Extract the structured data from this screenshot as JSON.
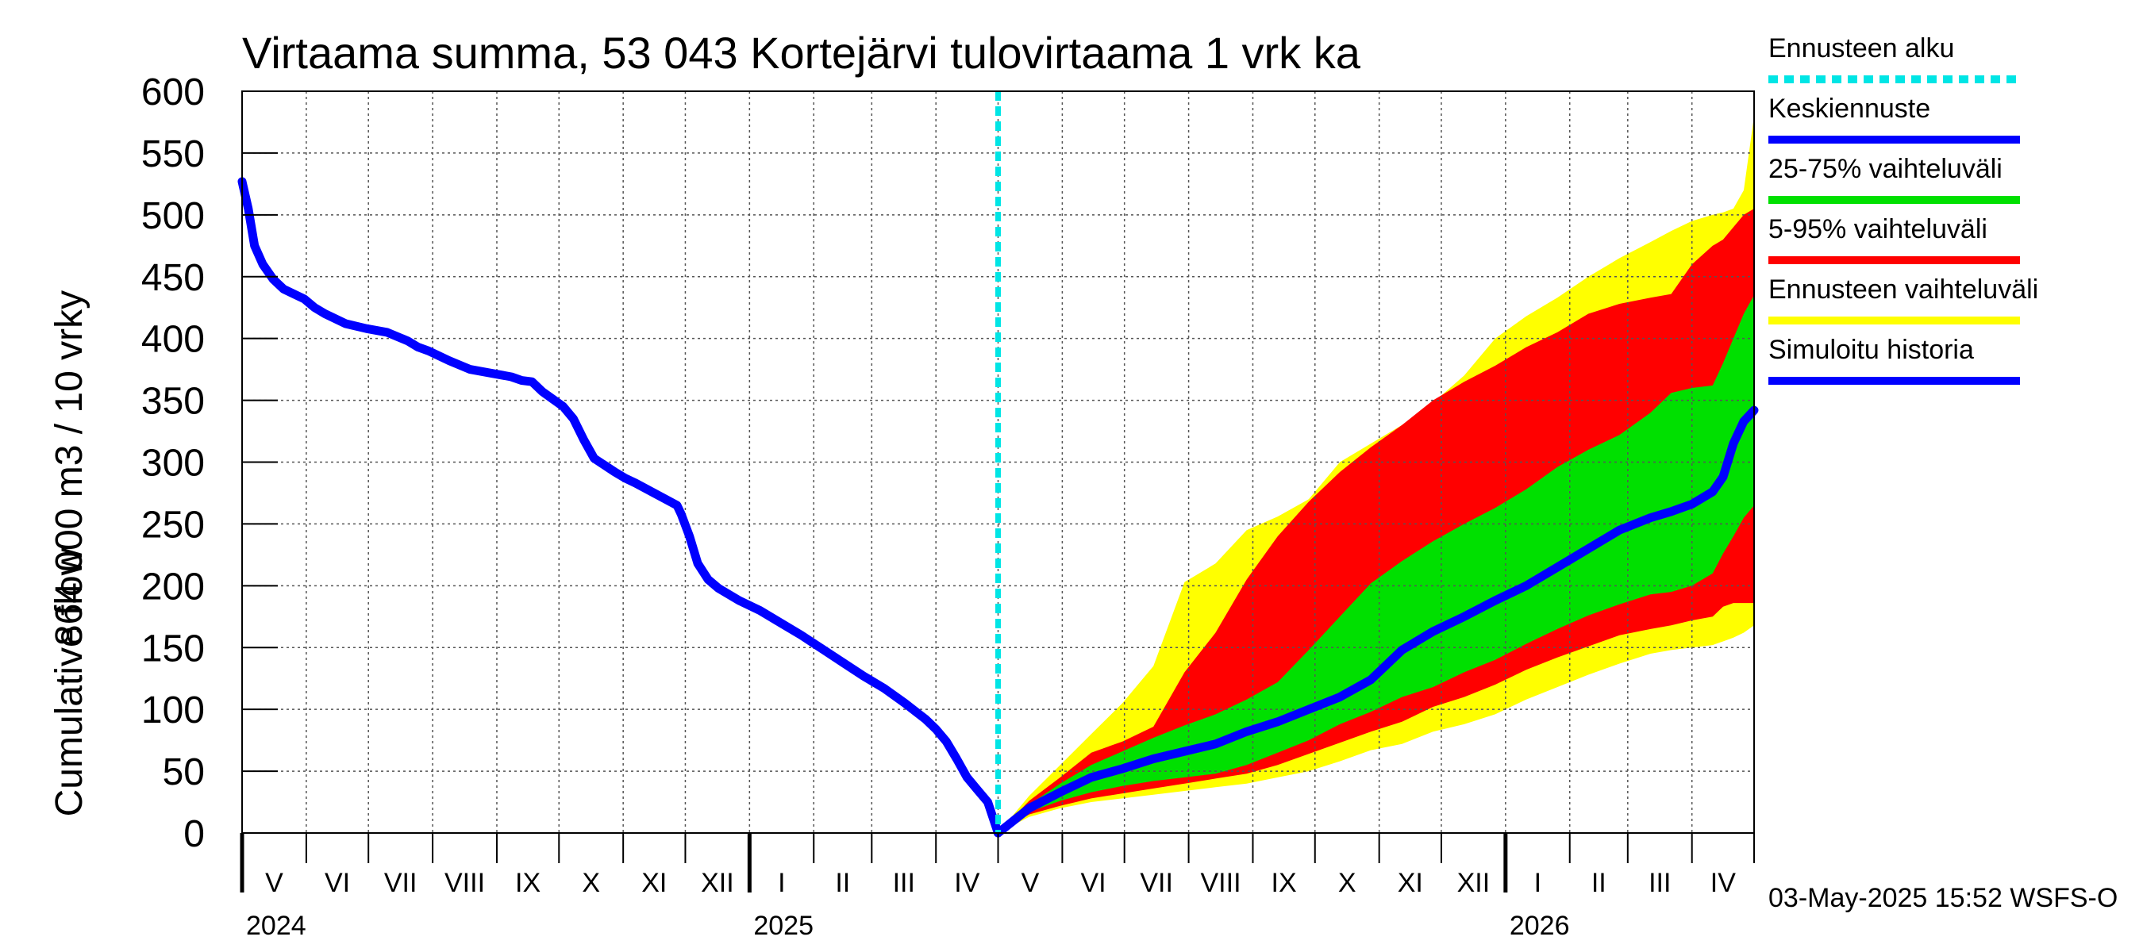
{
  "chart_data": {
    "type": "area",
    "title": "Virtaama summa, 53 043 Kortejärvi tulovirtaama 1 vrk ka",
    "ylabel_line1": "864 000 m3 / 10 vrky",
    "ylabel_line2": "Cumulative flow",
    "ylim": [
      0,
      600
    ],
    "yticks": [
      0,
      50,
      100,
      150,
      200,
      250,
      300,
      350,
      400,
      450,
      500,
      550,
      600
    ],
    "x_range_days": [
      0,
      730
    ],
    "month_labels": [
      "V",
      "VI",
      "VII",
      "VIII",
      "IX",
      "X",
      "XI",
      "XII",
      "I",
      "II",
      "III",
      "IV",
      "V",
      "VI",
      "VII",
      "VIII",
      "IX",
      "X",
      "XI",
      "XII",
      "I",
      "II",
      "III",
      "IV"
    ],
    "month_starts_days": [
      0,
      31,
      61,
      92,
      123,
      153,
      184,
      214,
      245,
      276,
      304,
      335,
      365,
      396,
      426,
      457,
      488,
      518,
      549,
      579,
      610,
      641,
      669,
      700,
      730
    ],
    "year_labels": [
      {
        "label": "2024",
        "day": 0
      },
      {
        "label": "2025",
        "day": 245
      },
      {
        "label": "2026",
        "day": 610
      }
    ],
    "forecast_start_day": 365,
    "timestamp": "03-May-2025 15:52 WSFS-O",
    "legend": [
      {
        "label": "Ennusteen alku",
        "color": "#00e5e5",
        "dashed": true
      },
      {
        "label": "Keskiennuste",
        "color": "#0000ff",
        "dashed": false
      },
      {
        "label": "25-75% vaihteluväli",
        "color": "#00e000",
        "dashed": false
      },
      {
        "label": "5-95% vaihteluväli",
        "color": "#ff0000",
        "dashed": false
      },
      {
        "label": "Ennusteen vaihteluväli",
        "color": "#ffff00",
        "dashed": false
      },
      {
        "label": "Simuloitu historia",
        "color": "#0000ff",
        "dashed": false
      }
    ],
    "series": [
      {
        "name": "Simuloitu historia",
        "x": [
          0,
          3,
          6,
          10,
          15,
          20,
          25,
          30,
          35,
          40,
          50,
          60,
          70,
          80,
          85,
          90,
          100,
          110,
          120,
          130,
          135,
          140,
          145,
          150,
          155,
          160,
          165,
          170,
          180,
          185,
          190,
          200,
          210,
          212,
          216,
          220,
          225,
          230,
          240,
          250,
          260,
          270,
          280,
          290,
          300,
          310,
          320,
          330,
          335,
          340,
          345,
          350,
          355,
          360,
          365
        ],
        "values": [
          527,
          505,
          475,
          460,
          448,
          440,
          436,
          432,
          425,
          420,
          412,
          408,
          405,
          398,
          393,
          390,
          382,
          375,
          372,
          369,
          366,
          365,
          357,
          351,
          345,
          335,
          318,
          303,
          292,
          287,
          283,
          274,
          265,
          258,
          240,
          218,
          205,
          198,
          188,
          180,
          170,
          160,
          149,
          138,
          127,
          117,
          105,
          92,
          84,
          74,
          60,
          45,
          35,
          25,
          0
        ]
      },
      {
        "name": "Keskiennuste",
        "x": [
          365,
          380,
          395,
          410,
          425,
          440,
          455,
          470,
          485,
          500,
          515,
          530,
          545,
          560,
          575,
          590,
          605,
          620,
          635,
          650,
          665,
          680,
          690,
          700,
          710,
          715,
          720,
          725,
          730
        ],
        "values": [
          0,
          20,
          33,
          45,
          52,
          60,
          66,
          72,
          82,
          90,
          100,
          110,
          124,
          148,
          163,
          175,
          188,
          200,
          215,
          230,
          245,
          255,
          260,
          266,
          276,
          288,
          315,
          333,
          342
        ]
      },
      {
        "name": "25-75% vaihteluväli",
        "x": [
          365,
          380,
          395,
          410,
          425,
          440,
          455,
          470,
          485,
          500,
          515,
          530,
          545,
          560,
          575,
          590,
          605,
          620,
          635,
          650,
          665,
          680,
          690,
          700,
          710,
          715,
          720,
          725,
          730
        ],
        "upper": [
          0,
          23,
          40,
          55,
          66,
          77,
          87,
          96,
          108,
          122,
          148,
          175,
          202,
          220,
          236,
          250,
          263,
          278,
          296,
          310,
          322,
          340,
          356,
          360,
          362,
          380,
          400,
          420,
          435
        ],
        "lower": [
          0,
          17,
          26,
          33,
          38,
          42,
          45,
          48,
          55,
          65,
          75,
          88,
          98,
          110,
          118,
          130,
          140,
          153,
          165,
          176,
          185,
          193,
          195,
          200,
          210,
          226,
          240,
          255,
          265
        ]
      },
      {
        "name": "5-95% vaihteluväli",
        "x": [
          365,
          380,
          395,
          410,
          425,
          440,
          455,
          470,
          485,
          500,
          515,
          530,
          545,
          560,
          575,
          590,
          605,
          620,
          635,
          650,
          665,
          680,
          690,
          700,
          710,
          715,
          720,
          725,
          730
        ],
        "upper": [
          0,
          26,
          45,
          65,
          74,
          86,
          130,
          162,
          205,
          240,
          268,
          292,
          312,
          330,
          350,
          365,
          378,
          393,
          405,
          420,
          428,
          433,
          436,
          460,
          475,
          480,
          490,
          500,
          505
        ],
        "lower": [
          0,
          15,
          22,
          28,
          32,
          36,
          40,
          44,
          48,
          55,
          64,
          73,
          82,
          90,
          102,
          110,
          120,
          132,
          142,
          151,
          160,
          165,
          168,
          172,
          175,
          183,
          186,
          186,
          186
        ]
      },
      {
        "name": "Ennusteen vaihteluväli",
        "x": [
          365,
          380,
          395,
          410,
          425,
          440,
          455,
          470,
          485,
          500,
          515,
          530,
          545,
          560,
          575,
          590,
          605,
          620,
          635,
          650,
          665,
          680,
          690,
          700,
          710,
          715,
          720,
          725,
          730
        ],
        "upper": [
          0,
          30,
          55,
          80,
          105,
          135,
          203,
          218,
          245,
          256,
          270,
          300,
          315,
          330,
          348,
          370,
          400,
          418,
          433,
          450,
          465,
          478,
          487,
          495,
          500,
          502,
          505,
          520,
          580
        ],
        "lower": [
          0,
          13,
          20,
          25,
          28,
          31,
          34,
          37,
          40,
          45,
          50,
          58,
          67,
          72,
          82,
          88,
          96,
          108,
          118,
          128,
          137,
          145,
          148,
          150,
          152,
          155,
          158,
          162,
          168
        ]
      }
    ]
  }
}
